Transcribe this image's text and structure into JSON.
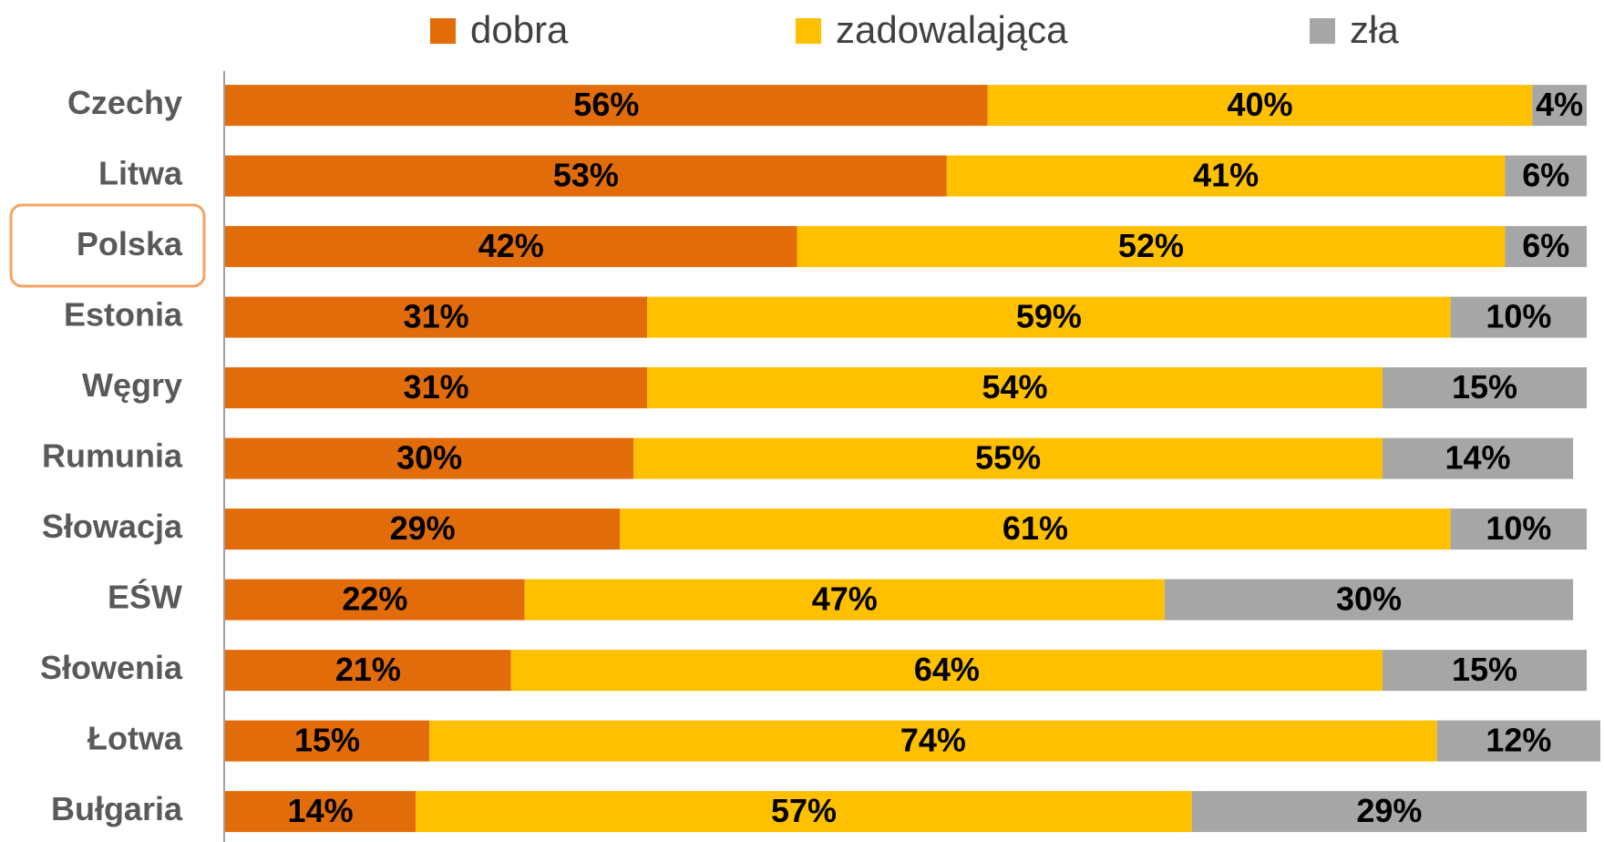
{
  "chart_data": {
    "type": "stacked-bar-horizontal",
    "categories": [
      "Czechy",
      "Litwa",
      "Polska",
      "Estonia",
      "Węgry",
      "Rumunia",
      "Słowacja",
      "EŚW",
      "Słowenia",
      "Łotwa",
      "Bułgaria"
    ],
    "series": [
      {
        "name": "dobra",
        "color": "#E36C0A",
        "values": [
          56,
          53,
          42,
          31,
          31,
          30,
          29,
          22,
          21,
          15,
          14
        ],
        "value_labels": [
          "56%",
          "53%",
          "42%",
          "31%",
          "31%",
          "30%",
          "29%",
          "22%",
          "21%",
          "15%",
          "14%"
        ]
      },
      {
        "name": "zadowalająca",
        "color": "#FFC000",
        "values": [
          40,
          41,
          52,
          59,
          54,
          55,
          61,
          47,
          64,
          74,
          57
        ],
        "value_labels": [
          "40%",
          "41%",
          "52%",
          "59%",
          "54%",
          "55%",
          "61%",
          "47%",
          "64%",
          "74%",
          "57%"
        ]
      },
      {
        "name": "zła",
        "color": "#A6A6A6",
        "values": [
          4,
          6,
          6,
          10,
          15,
          14,
          10,
          30,
          15,
          12,
          29
        ],
        "value_labels": [
          "4%",
          "6%",
          "6%",
          "10%",
          "15%",
          "14%",
          "10%",
          "30%",
          "15%",
          "12%",
          "29%"
        ]
      }
    ],
    "legend": "top"
  }
}
